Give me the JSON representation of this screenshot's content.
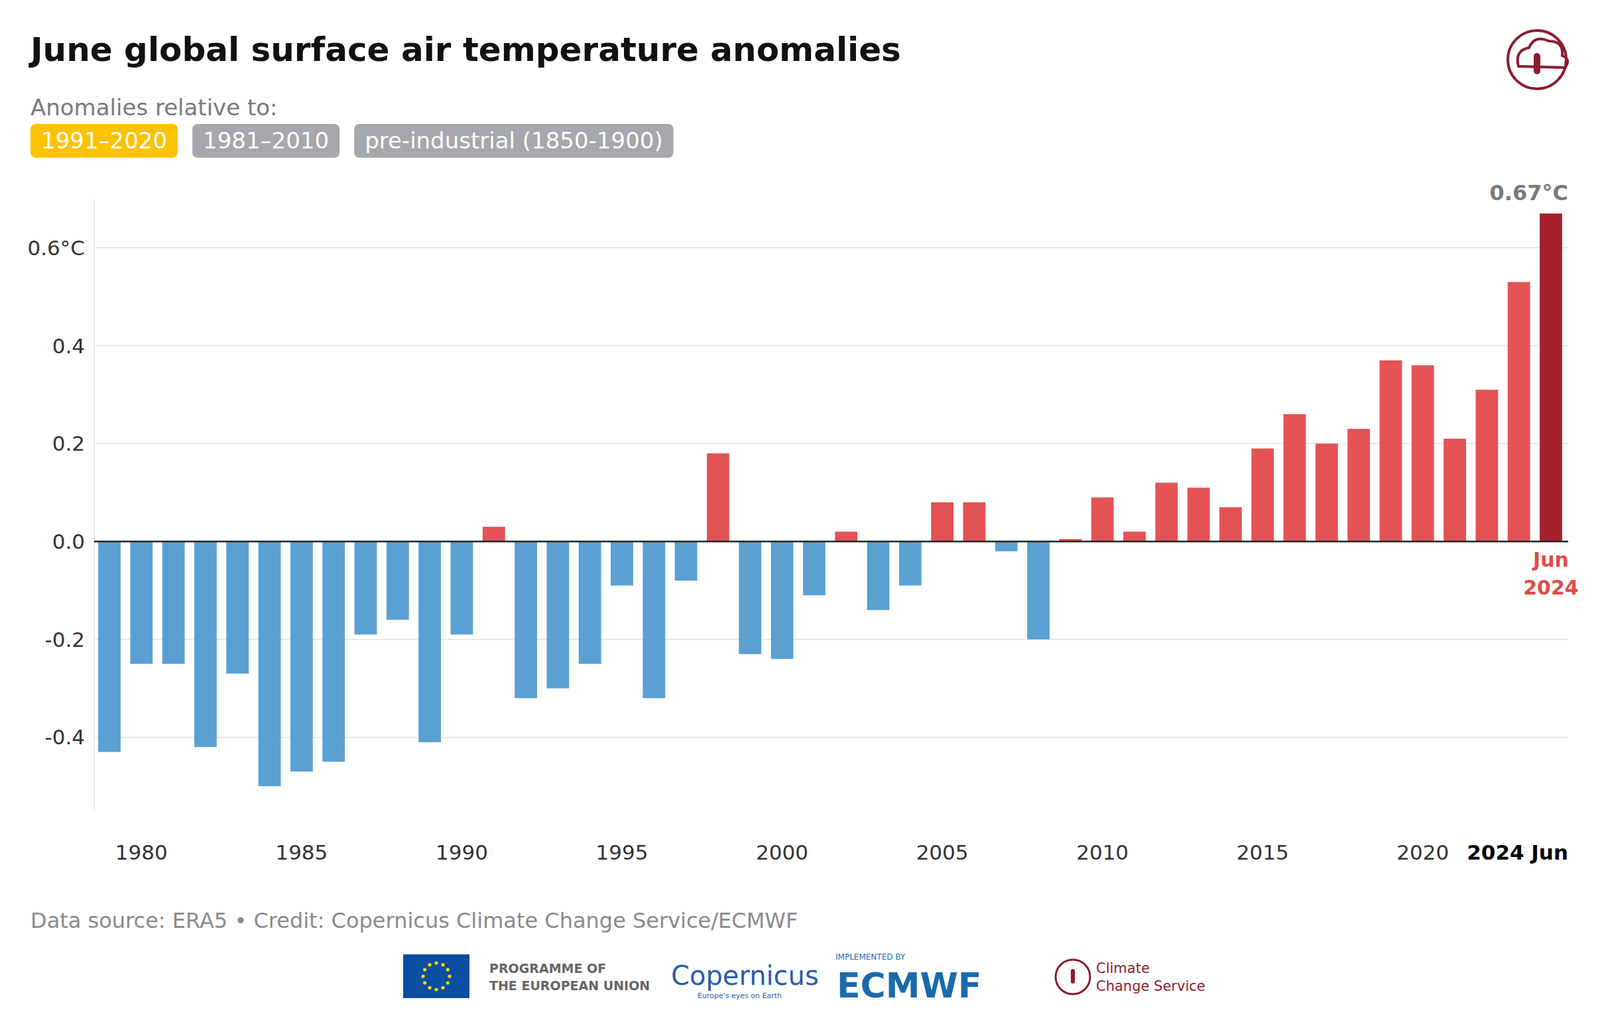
{
  "chart_data": {
    "type": "bar",
    "title": "June global surface air temperature anomalies",
    "subtitle": "Anomalies relative to:",
    "buttons": [
      "1991–2020",
      "1981–2010",
      "pre-industrial (1850-1900)"
    ],
    "categories": [
      null,
      "1980",
      null,
      null,
      null,
      null,
      "1985",
      null,
      null,
      null,
      null,
      "1990",
      null,
      null,
      null,
      null,
      "1995",
      null,
      null,
      null,
      null,
      "2000",
      null,
      null,
      null,
      null,
      "2005",
      null,
      null,
      null,
      null,
      "2010",
      null,
      null,
      null,
      null,
      "2015",
      null,
      null,
      null,
      null,
      "2020",
      null,
      null,
      null,
      "2024 Jun"
    ],
    "values": [
      -0.43,
      -0.25,
      -0.25,
      -0.42,
      -0.27,
      -0.5,
      -0.47,
      -0.45,
      -0.19,
      -0.16,
      -0.41,
      -0.19,
      0.03,
      -0.32,
      -0.3,
      -0.25,
      -0.09,
      -0.32,
      -0.08,
      0.18,
      -0.23,
      -0.24,
      -0.11,
      0.02,
      -0.14,
      -0.09,
      0.08,
      0.08,
      -0.02,
      -0.2,
      0.005,
      0.09,
      0.02,
      0.12,
      0.11,
      0.07,
      0.19,
      0.26,
      0.2,
      0.23,
      0.37,
      0.36,
      0.21,
      0.31,
      0.53,
      0.67
    ],
    "colors": [
      "#5ba0d2",
      "#5ba0d2",
      "#5ba0d2",
      "#5ba0d2",
      "#5ba0d2",
      "#5ba0d2",
      "#5ba0d2",
      "#5ba0d2",
      "#5ba0d2",
      "#5ba0d2",
      "#5ba0d2",
      "#5ba0d2",
      "#e45353",
      "#5ba0d2",
      "#5ba0d2",
      "#5ba0d2",
      "#5ba0d2",
      "#5ba0d2",
      "#5ba0d2",
      "#e45353",
      "#5ba0d2",
      "#5ba0d2",
      "#5ba0d2",
      "#e45353",
      "#5ba0d2",
      "#5ba0d2",
      "#e45353",
      "#e45353",
      "#5ba0d2",
      "#5ba0d2",
      "#e45353",
      "#e45353",
      "#e45353",
      "#e45353",
      "#e45353",
      "#e45353",
      "#e45353",
      "#e45353",
      "#e45353",
      "#e45353",
      "#e45353",
      "#e45353",
      "#e45353",
      "#e45353",
      "#e45353",
      "#a8202c"
    ],
    "ylim": [
      -0.55,
      0.7
    ],
    "yticks": [
      -0.4,
      -0.2,
      {
        "value": 0,
        "label": "0.0"
      },
      0.2,
      0.4,
      {
        "value": 0.6,
        "label": "0.6°C"
      }
    ],
    "grid": true,
    "annotations": [
      "0.67°C",
      "Jun 2024"
    ],
    "footer": "Data source: ERA5 • Credit: Copernicus Climate Change Service/ECMWF",
    "logos": [
      "PROGRAMME OF",
      "THE EUROPEAN UNION",
      "Copernicus",
      "Europe's eyes on Earth",
      "IMPLEMENTED BY",
      "ECMWF",
      "Climate",
      "Change Service"
    ]
  }
}
